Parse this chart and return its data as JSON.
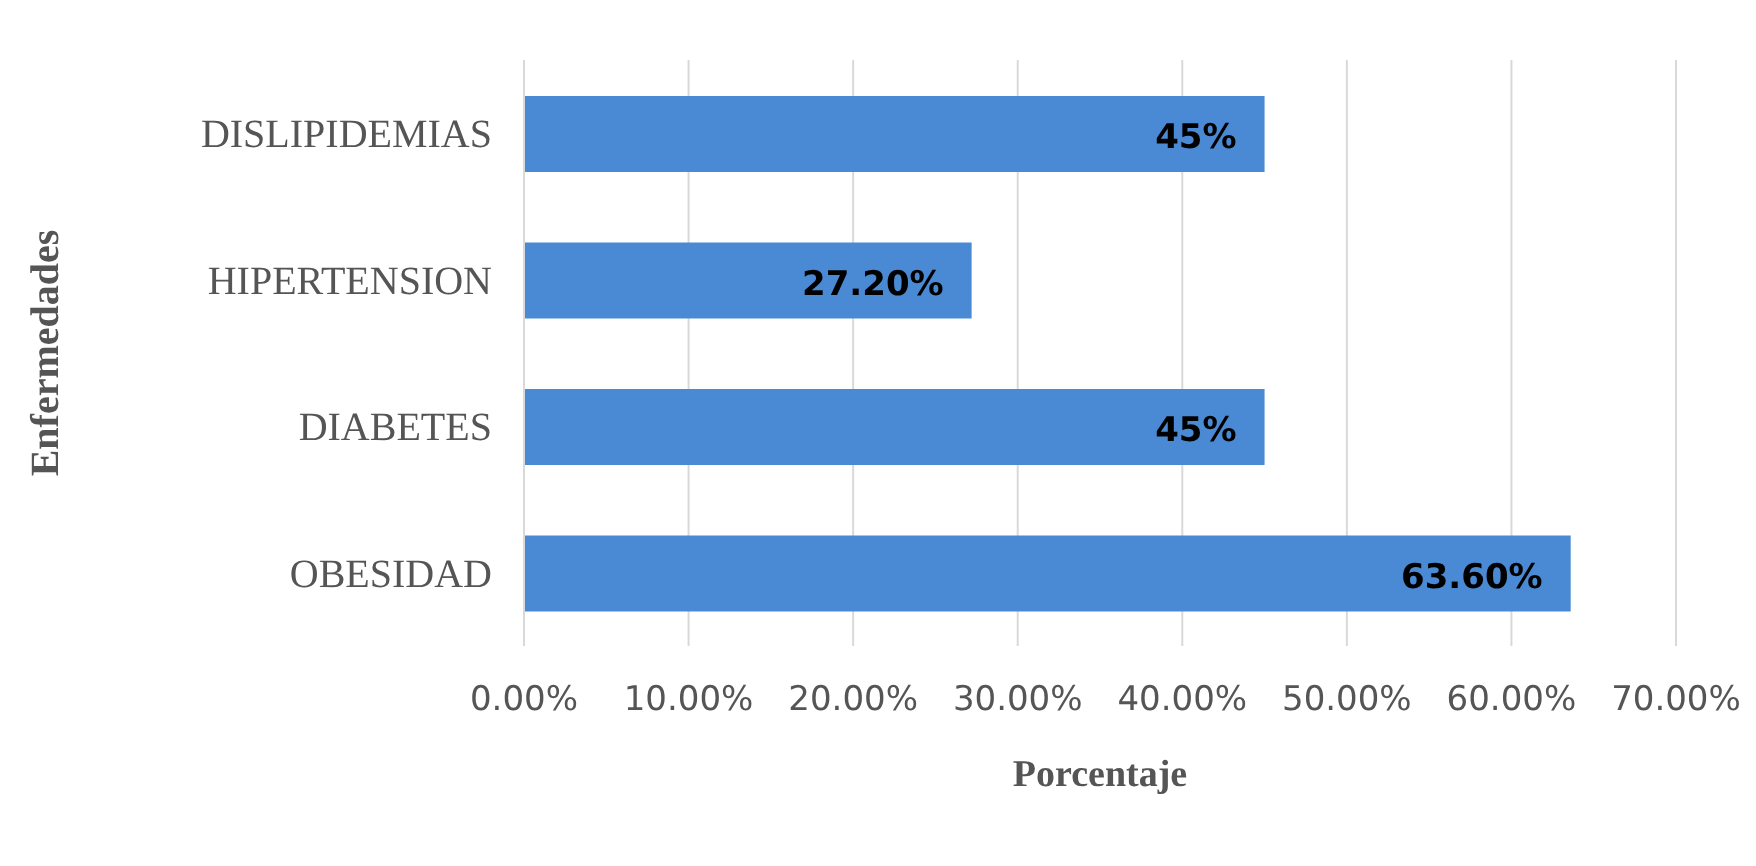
{
  "chart_data": {
    "type": "bar",
    "orientation": "horizontal",
    "xlabel": "Porcentaje",
    "ylabel": "Enfermedades",
    "categories": [
      "DISLIPIDEMIAS",
      "HIPERTENSION",
      "DIABETES",
      "OBESIDAD"
    ],
    "values": [
      45,
      27.2,
      45,
      63.6
    ],
    "value_labels": [
      "45%",
      "27.20%",
      "45%",
      "63.60%"
    ],
    "color": "#4a8ad4",
    "xlim": [
      0,
      70
    ],
    "xticks": [
      {
        "value": 0,
        "label": "0.00%"
      },
      {
        "value": 10,
        "label": "10.00%"
      },
      {
        "value": 20,
        "label": "20.00%"
      },
      {
        "value": 30,
        "label": "30.00%"
      },
      {
        "value": 40,
        "label": "40.00%"
      },
      {
        "value": 50,
        "label": "50.00%"
      },
      {
        "value": 60,
        "label": "60.00%"
      },
      {
        "value": 70,
        "label": "70.00%"
      }
    ],
    "grid": "x",
    "legend": false
  }
}
